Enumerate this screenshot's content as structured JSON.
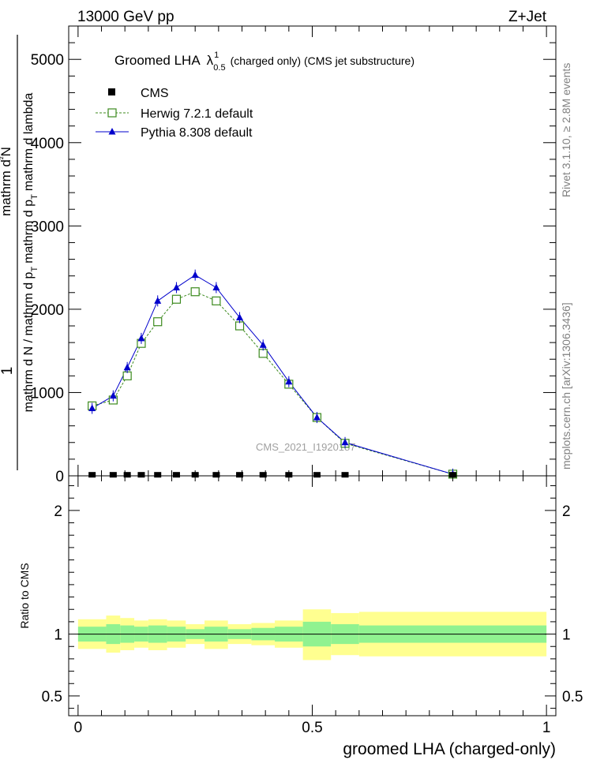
{
  "header": {
    "left": "13000 GeV pp",
    "right": "Z+Jet"
  },
  "side_texts": {
    "rivet": "Rivet 3.1.10, ≥ 2.8M events",
    "mcplots": "mcplots.cern.ch [arXiv:1306.3436]"
  },
  "plot": {
    "title_main": "Groomed LHA",
    "title_symbol": "λ",
    "title_sup": "1",
    "title_sub": "0.5",
    "title_tail": "(charged only) (CMS jet substructure)",
    "watermark": "CMS_2021_I1920187",
    "ylabel_top": "1",
    "ylabel_bottom": "mathrm d²N / mathrm d p T mathrm d lambda",
    "ylabel_num_parts": [
      "mathrm d",
      "²",
      "N"
    ],
    "ylabel_den_parts": [
      "mathrm d N / mathrm d p",
      "T",
      "mathrm d p",
      "T",
      "mathrm d lambda"
    ]
  },
  "ratio": {
    "ylabel": "Ratio to CMS"
  },
  "xaxis": {
    "label": "groomed LHA (charged-only)"
  },
  "legend": [
    {
      "name": "CMS",
      "color": "#000000",
      "marker": "square-filled"
    },
    {
      "name": "Herwig 7.2.1 default",
      "color": "#3c8a1e",
      "marker": "square-open",
      "dash": "3,2"
    },
    {
      "name": "Pythia 8.308 default",
      "color": "#0000cc",
      "marker": "triangle"
    }
  ],
  "chart_data": [
    {
      "type": "line",
      "panel": "main",
      "x_range": [
        -0.02,
        1.02
      ],
      "ylim": [
        0,
        5400
      ],
      "y_ticks": [
        0,
        1000,
        2000,
        3000,
        4000,
        5000
      ],
      "y_tick_labels": [
        "0",
        "1000",
        "2000",
        "3000",
        "4000",
        "5000"
      ],
      "series": [
        {
          "name": "CMS",
          "x": [
            0.03,
            0.075,
            0.105,
            0.135,
            0.17,
            0.21,
            0.25,
            0.295,
            0.345,
            0.395,
            0.45,
            0.51,
            0.57,
            0.8
          ],
          "y": [
            3,
            3,
            3,
            3,
            3,
            3,
            3,
            3,
            3,
            3,
            3,
            3,
            3,
            3
          ]
        },
        {
          "name": "Herwig 7.2.1 default",
          "x": [
            0.03,
            0.075,
            0.105,
            0.135,
            0.17,
            0.21,
            0.25,
            0.295,
            0.345,
            0.395,
            0.45,
            0.51,
            0.57,
            0.8
          ],
          "y": [
            840,
            910,
            1200,
            1590,
            1850,
            2120,
            2210,
            2100,
            1800,
            1470,
            1100,
            700,
            390,
            20
          ]
        },
        {
          "name": "Pythia 8.308 default",
          "x": [
            0.03,
            0.075,
            0.105,
            0.135,
            0.17,
            0.21,
            0.25,
            0.295,
            0.345,
            0.395,
            0.45,
            0.51,
            0.57,
            0.8
          ],
          "y": [
            810,
            960,
            1300,
            1650,
            2100,
            2260,
            2410,
            2260,
            1900,
            1570,
            1130,
            700,
            400,
            20
          ]
        }
      ]
    },
    {
      "type": "area",
      "panel": "ratio",
      "ylabel": "Ratio to CMS",
      "ylim": [
        0.34,
        2.28
      ],
      "y_ticks": [
        0.5,
        1,
        2
      ],
      "y_tick_labels": [
        "0.5",
        "1",
        "2"
      ],
      "x_ticks": [
        0,
        0.5,
        1
      ],
      "x_tick_labels": [
        "0",
        "0.5",
        "1"
      ],
      "bins": [
        {
          "x0": 0.0,
          "x1": 0.06,
          "stat": [
            0.94,
            1.06
          ],
          "tot": [
            0.88,
            1.12
          ]
        },
        {
          "x0": 0.06,
          "x1": 0.09,
          "stat": [
            0.92,
            1.08
          ],
          "tot": [
            0.85,
            1.15
          ]
        },
        {
          "x0": 0.09,
          "x1": 0.12,
          "stat": [
            0.93,
            1.07
          ],
          "tot": [
            0.87,
            1.13
          ]
        },
        {
          "x0": 0.12,
          "x1": 0.15,
          "stat": [
            0.94,
            1.06
          ],
          "tot": [
            0.89,
            1.11
          ]
        },
        {
          "x0": 0.15,
          "x1": 0.19,
          "stat": [
            0.93,
            1.07
          ],
          "tot": [
            0.87,
            1.12
          ]
        },
        {
          "x0": 0.19,
          "x1": 0.23,
          "stat": [
            0.94,
            1.06
          ],
          "tot": [
            0.89,
            1.11
          ]
        },
        {
          "x0": 0.23,
          "x1": 0.27,
          "stat": [
            0.96,
            1.04
          ],
          "tot": [
            0.92,
            1.08
          ]
        },
        {
          "x0": 0.27,
          "x1": 0.32,
          "stat": [
            0.94,
            1.06
          ],
          "tot": [
            0.88,
            1.11
          ]
        },
        {
          "x0": 0.32,
          "x1": 0.37,
          "stat": [
            0.96,
            1.04
          ],
          "tot": [
            0.92,
            1.08
          ]
        },
        {
          "x0": 0.37,
          "x1": 0.42,
          "stat": [
            0.95,
            1.05
          ],
          "tot": [
            0.91,
            1.09
          ]
        },
        {
          "x0": 0.42,
          "x1": 0.48,
          "stat": [
            0.94,
            1.06
          ],
          "tot": [
            0.89,
            1.11
          ]
        },
        {
          "x0": 0.48,
          "x1": 0.54,
          "stat": [
            0.9,
            1.1
          ],
          "tot": [
            0.79,
            1.2
          ]
        },
        {
          "x0": 0.54,
          "x1": 0.6,
          "stat": [
            0.92,
            1.08
          ],
          "tot": [
            0.83,
            1.17
          ]
        },
        {
          "x0": 0.6,
          "x1": 1.0,
          "stat": [
            0.93,
            1.07
          ],
          "tot": [
            0.82,
            1.18
          ]
        }
      ]
    }
  ],
  "colors": {
    "stat_band": "#90f290",
    "tot_band": "#ffff90",
    "axis": "#000000",
    "watermark": "#a0a0a0",
    "side_text": "#808080"
  }
}
